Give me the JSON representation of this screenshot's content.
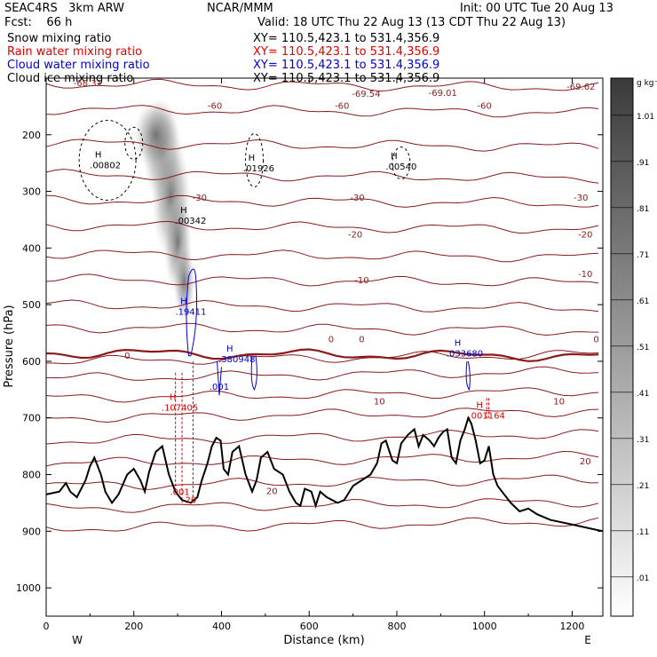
{
  "header": {
    "model": "SEAC4RS   3km ARW",
    "org": "NCAR/MMM",
    "init": "Init: 00 UTC Tue 20 Aug 13",
    "fcst": "Fcst:    66 h",
    "valid": "Valid: 18 UTC Thu 22 Aug 13 (13 CDT Thu 22 Aug 13)"
  },
  "fields": [
    {
      "label": "Snow mixing ratio",
      "xy": "XY= 110.5,423.1 to 531.4,356.9",
      "color": "#000000"
    },
    {
      "label": "Rain water mixing ratio",
      "xy": "XY= 110.5,423.1 to 531.4,356.9",
      "color": "#e00000"
    },
    {
      "label": "Cloud water mixing ratio",
      "xy": "XY= 110.5,423.1 to 531.4,356.9",
      "color": "#0000d0"
    },
    {
      "label": "Cloud ice mixing ratio",
      "xy": "XY= 110.5,423.1 to 531.4,356.9",
      "color": "#000000"
    }
  ],
  "chart_data": {
    "type": "cross-section",
    "xlabel": "Distance (km)",
    "ylabel": "Pressure (hPa)",
    "xlim": [
      0,
      1270
    ],
    "ylim": [
      100,
      1050
    ],
    "x_ticks": [
      0,
      200,
      400,
      600,
      800,
      1000,
      1200
    ],
    "y_ticks": [
      200,
      300,
      400,
      500,
      600,
      700,
      800,
      900,
      1000
    ],
    "end_labels": {
      "left": "W",
      "right": "E"
    },
    "colorbar": {
      "unit": "g kg⁻¹",
      "ticks": [
        "1.01",
        ".91",
        ".81",
        ".71",
        ".61",
        ".51",
        ".41",
        ".31",
        ".21",
        ".11",
        ".01"
      ]
    },
    "temperature_labels": [
      {
        "text": "-68.31",
        "x": 95,
        "p": 108
      },
      {
        "text": "-69.54",
        "x": 730,
        "p": 127
      },
      {
        "text": "-69.01",
        "x": 905,
        "p": 125
      },
      {
        "text": "-69.62",
        "x": 1220,
        "p": 114
      },
      {
        "text": "-60",
        "x": 385,
        "p": 148
      },
      {
        "text": "-60",
        "x": 675,
        "p": 148
      },
      {
        "text": "-60",
        "x": 1000,
        "p": 148
      },
      {
        "text": "-30",
        "x": 350,
        "p": 310
      },
      {
        "text": "-30",
        "x": 710,
        "p": 310
      },
      {
        "text": "-30",
        "x": 1220,
        "p": 310
      },
      {
        "text": "-20",
        "x": 705,
        "p": 375
      },
      {
        "text": "-20",
        "x": 1230,
        "p": 375
      },
      {
        "text": "-10",
        "x": 720,
        "p": 456
      },
      {
        "text": "-10",
        "x": 1230,
        "p": 445
      },
      {
        "text": "0",
        "x": 185,
        "p": 589
      },
      {
        "text": "0",
        "x": 650,
        "p": 560
      },
      {
        "text": "0",
        "x": 720,
        "p": 560
      },
      {
        "text": "0",
        "x": 1255,
        "p": 560
      },
      {
        "text": "10",
        "x": 760,
        "p": 670
      },
      {
        "text": "10",
        "x": 1170,
        "p": 670
      },
      {
        "text": "20",
        "x": 515,
        "p": 828
      },
      {
        "text": "20",
        "x": 1230,
        "p": 776
      }
    ],
    "maxima_labels": [
      {
        "h": "H",
        "value": ".00802",
        "x": 135,
        "p": 250,
        "field": "ice"
      },
      {
        "h": "H",
        "value": ".01926",
        "x": 485,
        "p": 255,
        "field": "ice"
      },
      {
        "h": "H",
        "value": ".00540",
        "x": 810,
        "p": 252,
        "field": "ice"
      },
      {
        "h": "H",
        "value": ".00342",
        "x": 330,
        "p": 348,
        "field": "ice"
      },
      {
        "h": "H",
        "value": ".19411",
        "x": 330,
        "p": 508,
        "field": "cloud"
      },
      {
        "h": "H",
        "value": ".380948",
        "x": 435,
        "p": 592,
        "field": "cloud"
      },
      {
        "h": "H",
        "value": ".033680",
        "x": 955,
        "p": 582,
        "field": "cloud"
      },
      {
        "h": "H",
        "value": ".107405",
        "x": 305,
        "p": 678,
        "field": "rain"
      },
      {
        "h": "H",
        "value": ".001164",
        "x": 1005,
        "p": 692,
        "field": "rain"
      }
    ],
    "other_labels": [
      {
        "text": ".001",
        "x": 395,
        "p": 650,
        "field": "cloud"
      },
      {
        "text": ".001",
        "x": 305,
        "p": 836,
        "field": "rain"
      },
      {
        "text": "20",
        "x": 330,
        "p": 850,
        "field": "rain"
      }
    ],
    "terrain": [
      [
        0,
        835
      ],
      [
        30,
        830
      ],
      [
        45,
        815
      ],
      [
        55,
        830
      ],
      [
        70,
        840
      ],
      [
        90,
        810
      ],
      [
        100,
        785
      ],
      [
        110,
        770
      ],
      [
        125,
        800
      ],
      [
        135,
        830
      ],
      [
        150,
        850
      ],
      [
        165,
        835
      ],
      [
        185,
        800
      ],
      [
        200,
        790
      ],
      [
        215,
        810
      ],
      [
        225,
        830
      ],
      [
        235,
        795
      ],
      [
        250,
        760
      ],
      [
        265,
        750
      ],
      [
        280,
        800
      ],
      [
        295,
        830
      ],
      [
        310,
        845
      ],
      [
        330,
        850
      ],
      [
        345,
        840
      ],
      [
        355,
        810
      ],
      [
        368,
        780
      ],
      [
        378,
        750
      ],
      [
        388,
        735
      ],
      [
        398,
        740
      ],
      [
        405,
        790
      ],
      [
        415,
        800
      ],
      [
        425,
        760
      ],
      [
        440,
        750
      ],
      [
        455,
        800
      ],
      [
        470,
        830
      ],
      [
        480,
        810
      ],
      [
        490,
        770
      ],
      [
        505,
        760
      ],
      [
        520,
        790
      ],
      [
        540,
        800
      ],
      [
        555,
        830
      ],
      [
        570,
        850
      ],
      [
        580,
        855
      ],
      [
        590,
        825
      ],
      [
        605,
        830
      ],
      [
        615,
        855
      ],
      [
        625,
        830
      ],
      [
        640,
        840
      ],
      [
        665,
        850
      ],
      [
        680,
        845
      ],
      [
        700,
        820
      ],
      [
        720,
        810
      ],
      [
        740,
        800
      ],
      [
        755,
        780
      ],
      [
        765,
        745
      ],
      [
        775,
        740
      ],
      [
        790,
        775
      ],
      [
        800,
        780
      ],
      [
        810,
        745
      ],
      [
        825,
        730
      ],
      [
        840,
        720
      ],
      [
        850,
        750
      ],
      [
        860,
        730
      ],
      [
        875,
        740
      ],
      [
        885,
        750
      ],
      [
        895,
        735
      ],
      [
        905,
        725
      ],
      [
        915,
        720
      ],
      [
        925,
        770
      ],
      [
        935,
        780
      ],
      [
        945,
        740
      ],
      [
        955,
        720
      ],
      [
        963,
        700
      ],
      [
        970,
        710
      ],
      [
        980,
        740
      ],
      [
        990,
        780
      ],
      [
        1000,
        775
      ],
      [
        1010,
        750
      ],
      [
        1020,
        800
      ],
      [
        1030,
        820
      ],
      [
        1045,
        835
      ],
      [
        1060,
        850
      ],
      [
        1080,
        865
      ],
      [
        1100,
        860
      ],
      [
        1120,
        870
      ],
      [
        1150,
        880
      ],
      [
        1180,
        885
      ],
      [
        1210,
        890
      ],
      [
        1240,
        895
      ],
      [
        1270,
        900
      ]
    ]
  }
}
